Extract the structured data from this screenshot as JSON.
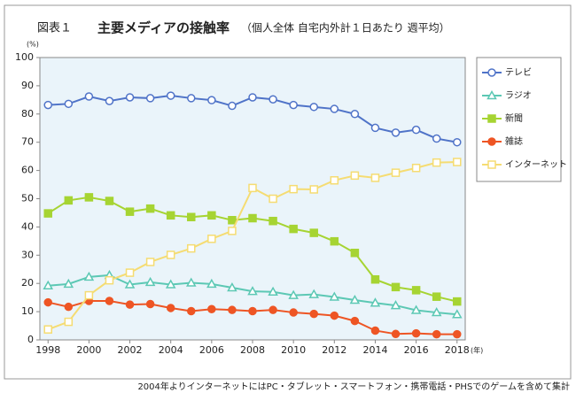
{
  "chart_data": {
    "type": "line",
    "figure_label": "図表１",
    "title": "主要メディアの接触率",
    "subtitle": "（個人全体 自宅内外計１日あたり 週平均）",
    "y_unit": "(%)",
    "x_unit": "(年)",
    "note": "2004年よりインターネットにはPC・タブレット・スマートフォン・携帯電話・PHSでのゲームを含めて集計",
    "x": [
      1998,
      1999,
      2000,
      2001,
      2002,
      2003,
      2004,
      2005,
      2006,
      2007,
      2008,
      2009,
      2010,
      2011,
      2012,
      2013,
      2014,
      2015,
      2016,
      2017,
      2018
    ],
    "xlim": [
      1997.6,
      2018.4
    ],
    "xticks": [
      1998,
      2000,
      2002,
      2004,
      2006,
      2008,
      2010,
      2012,
      2014,
      2016,
      2018
    ],
    "ylim": [
      0,
      100
    ],
    "yticks": [
      0,
      10,
      20,
      30,
      40,
      50,
      60,
      70,
      80,
      90,
      100
    ],
    "legend": "right",
    "series": [
      {
        "name": "テレビ",
        "color": "#4f73c8",
        "marker": "circle",
        "filled": false,
        "values": [
          83.2,
          83.6,
          86.2,
          84.6,
          85.9,
          85.6,
          86.5,
          85.6,
          84.9,
          82.9,
          85.9,
          85.2,
          83.2,
          82.5,
          81.8,
          80.0,
          75.1,
          73.4,
          74.4,
          71.3,
          70.0
        ]
      },
      {
        "name": "ラジオ",
        "color": "#5cc8b4",
        "marker": "triangle",
        "filled": false,
        "values": [
          19.2,
          19.8,
          22.3,
          22.9,
          19.6,
          20.4,
          19.6,
          20.2,
          19.8,
          18.5,
          17.2,
          17.0,
          15.8,
          16.1,
          15.2,
          14.1,
          13.1,
          12.2,
          10.5,
          9.7,
          9.0
        ]
      },
      {
        "name": "新聞",
        "color": "#a6d432",
        "marker": "square",
        "filled": true,
        "values": [
          44.8,
          49.4,
          50.5,
          49.2,
          45.4,
          46.5,
          44.1,
          43.5,
          44.1,
          42.4,
          43.1,
          42.1,
          39.3,
          37.9,
          34.9,
          30.8,
          21.4,
          18.7,
          17.6,
          15.3,
          13.6
        ]
      },
      {
        "name": "雑誌",
        "color": "#ee5524",
        "marker": "circle",
        "filled": true,
        "values": [
          13.3,
          11.7,
          13.8,
          13.8,
          12.5,
          12.7,
          11.3,
          10.2,
          10.9,
          10.6,
          10.2,
          10.6,
          9.7,
          9.2,
          8.6,
          6.7,
          3.3,
          2.1,
          2.3,
          2.0,
          2.0
        ]
      },
      {
        "name": "インターネット",
        "color": "#f5dc72",
        "marker": "square",
        "filled": false,
        "values": [
          3.7,
          6.4,
          15.8,
          21.1,
          23.8,
          27.6,
          30.1,
          32.4,
          35.8,
          38.6,
          53.8,
          50.0,
          53.4,
          53.3,
          56.5,
          58.2,
          57.4,
          59.2,
          60.9,
          62.8,
          63.0
        ]
      }
    ]
  }
}
